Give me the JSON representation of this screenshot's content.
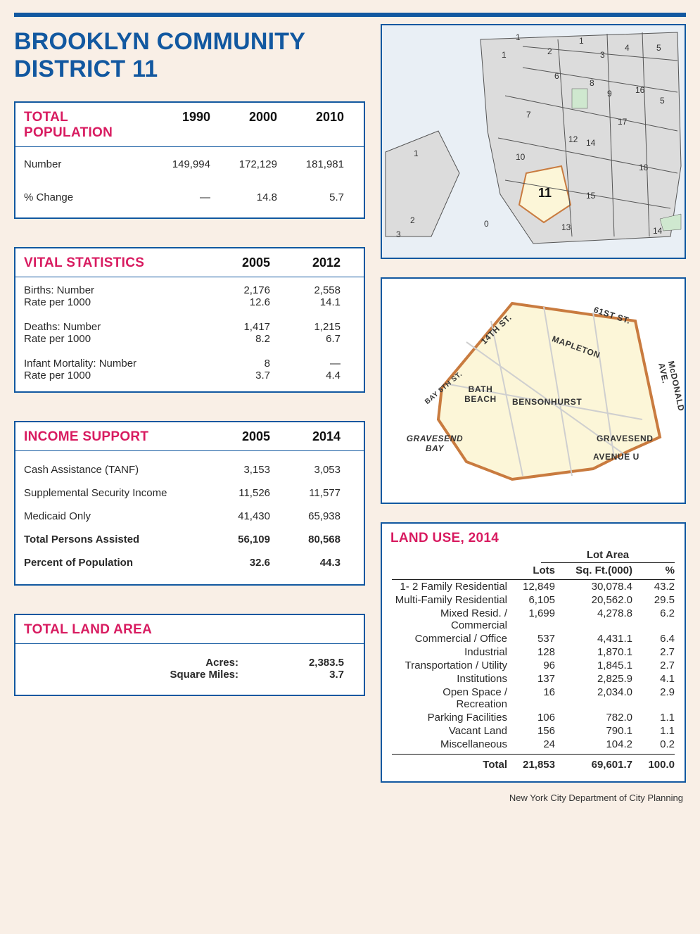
{
  "colors": {
    "background": "#f9efe6",
    "panel_bg": "#ffffff",
    "border": "#1258a0",
    "title": "#1258a0",
    "heading_accent": "#d81b60",
    "text": "#2a2a2a",
    "map_water": "#e9eff5",
    "map_land": "#dcdcdc",
    "map_highlight_fill": "#fcf6d8",
    "map_highlight_stroke": "#c97b3f",
    "map_park": "#cfe8cf"
  },
  "title": "BROOKLYN COMMUNITY DISTRICT 11",
  "population": {
    "heading": "TOTAL POPULATION",
    "years": [
      "1990",
      "2000",
      "2010"
    ],
    "rows": [
      {
        "label": "Number",
        "values": [
          "149,994",
          "172,129",
          "181,981"
        ]
      },
      {
        "label": "% Change",
        "values": [
          "—",
          "14.8",
          "5.7"
        ]
      }
    ]
  },
  "vital": {
    "heading": "VITAL STATISTICS",
    "years": [
      "2005",
      "2012"
    ],
    "groups": [
      {
        "rows": [
          {
            "label": "Births: Number",
            "values": [
              "2,176",
              "2,558"
            ]
          },
          {
            "label": "Rate per 1000",
            "values": [
              "12.6",
              "14.1"
            ]
          }
        ]
      },
      {
        "rows": [
          {
            "label": "Deaths: Number",
            "values": [
              "1,417",
              "1,215"
            ]
          },
          {
            "label": "Rate per 1000",
            "values": [
              "8.2",
              "6.7"
            ]
          }
        ]
      },
      {
        "rows": [
          {
            "label": "Infant Mortality: Number",
            "values": [
              "8",
              "—"
            ]
          },
          {
            "label": "Rate per 1000",
            "values": [
              "3.7",
              "4.4"
            ]
          }
        ]
      }
    ]
  },
  "income": {
    "heading": "INCOME SUPPORT",
    "years": [
      "2005",
      "2014"
    ],
    "rows": [
      {
        "label": "Cash Assistance (TANF)",
        "values": [
          "3,153",
          "3,053"
        ],
        "bold": false
      },
      {
        "label": "Supplemental Security Income",
        "values": [
          "11,526",
          "11,577"
        ],
        "bold": false
      },
      {
        "label": "Medicaid Only",
        "values": [
          "41,430",
          "65,938"
        ],
        "bold": false
      },
      {
        "label": "Total Persons Assisted",
        "values": [
          "56,109",
          "80,568"
        ],
        "bold": true
      },
      {
        "label": "Percent of Population",
        "values": [
          "32.6",
          "44.3"
        ],
        "bold": true
      }
    ]
  },
  "land_area": {
    "heading": "TOTAL LAND AREA",
    "rows": [
      {
        "label": "Acres:",
        "value": "2,383.5"
      },
      {
        "label": "Square Miles:",
        "value": "3.7"
      }
    ]
  },
  "locator_map": {
    "highlight_district": "11",
    "district_labels": [
      "1",
      "1",
      "1",
      "1",
      "2",
      "2",
      "3",
      "3",
      "4",
      "5",
      "5",
      "6",
      "7",
      "8",
      "9",
      "10",
      "12",
      "13",
      "14",
      "14",
      "15",
      "16",
      "17",
      "18",
      "0"
    ]
  },
  "neighborhood_map": {
    "streets": [
      "14TH ST.",
      "61ST ST.",
      "BAY 8TH ST.",
      "McDONALD AVE.",
      "AVENUE U"
    ],
    "neighborhoods": [
      "MAPLETON",
      "BATH BEACH",
      "BENSONHURST",
      "GRAVESEND"
    ],
    "water": "GRAVESEND BAY"
  },
  "land_use": {
    "heading": "LAND USE, 2014",
    "group_label": "Lot Area",
    "col_lots": "Lots",
    "col_sqft": "Sq. Ft.(000)",
    "col_pct": "%",
    "categories": [
      {
        "label": "1- 2 Family Residential",
        "lots": "12,849",
        "sqft": "30,078.4",
        "pct": "43.2"
      },
      {
        "label": "Multi-Family Residential",
        "lots": "6,105",
        "sqft": "20,562.0",
        "pct": "29.5"
      },
      {
        "label": "Mixed Resid. / Commercial",
        "lots": "1,699",
        "sqft": "4,278.8",
        "pct": "6.2"
      },
      {
        "label": "Commercial / Office",
        "lots": "537",
        "sqft": "4,431.1",
        "pct": "6.4"
      },
      {
        "label": "Industrial",
        "lots": "128",
        "sqft": "1,870.1",
        "pct": "2.7"
      },
      {
        "label": "Transportation / Utility",
        "lots": "96",
        "sqft": "1,845.1",
        "pct": "2.7"
      },
      {
        "label": "Institutions",
        "lots": "137",
        "sqft": "2,825.9",
        "pct": "4.1"
      },
      {
        "label": "Open Space / Recreation",
        "lots": "16",
        "sqft": "2,034.0",
        "pct": "2.9"
      },
      {
        "label": "Parking Facilities",
        "lots": "106",
        "sqft": "782.0",
        "pct": "1.1"
      },
      {
        "label": "Vacant Land",
        "lots": "156",
        "sqft": "790.1",
        "pct": "1.1"
      },
      {
        "label": "Miscellaneous",
        "lots": "24",
        "sqft": "104.2",
        "pct": "0.2"
      }
    ],
    "total": {
      "label": "Total",
      "lots": "21,853",
      "sqft": "69,601.7",
      "pct": "100.0"
    }
  },
  "credit": "New York City Department of City Planning"
}
